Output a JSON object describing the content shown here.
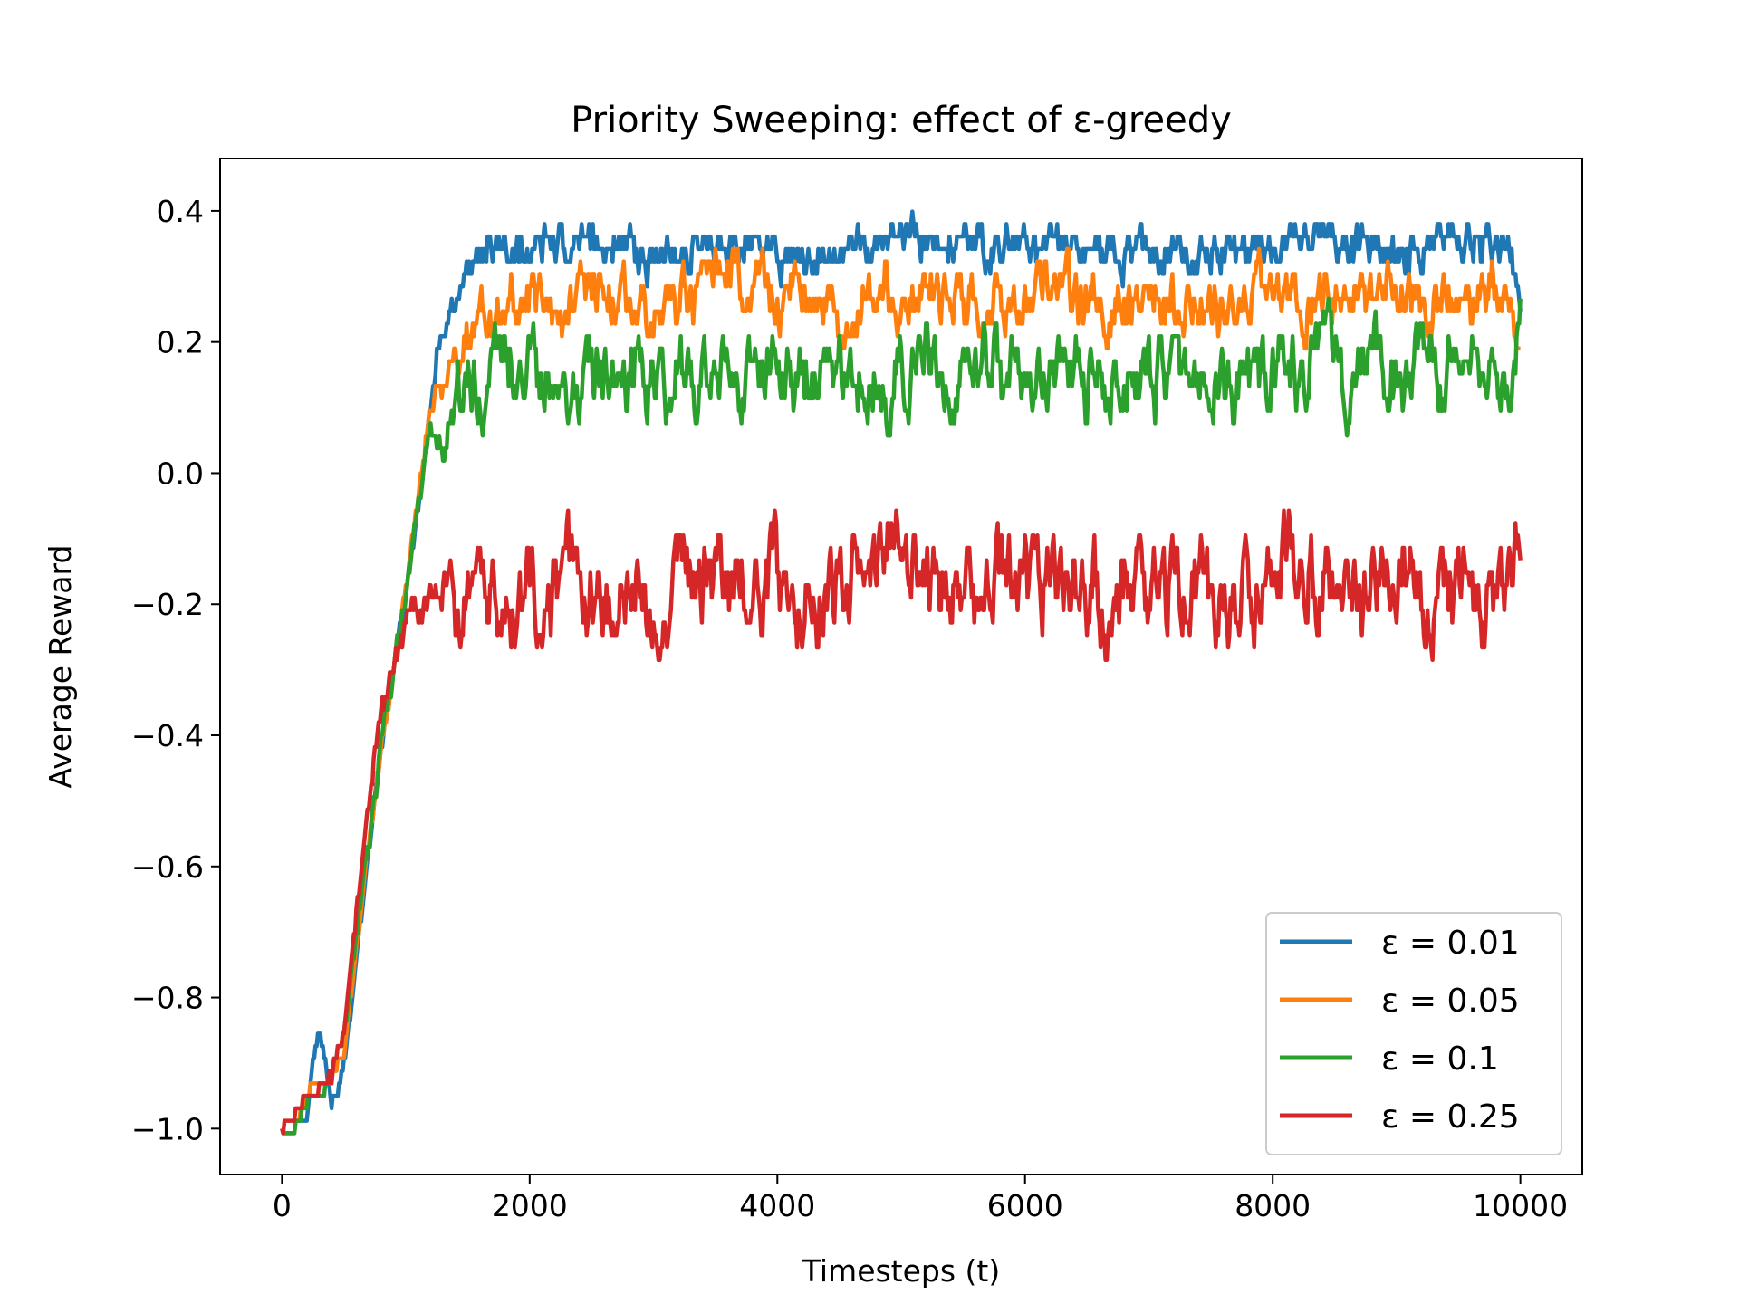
{
  "chart_data": {
    "type": "line",
    "title": "Priority Sweeping: effect of ε-greedy",
    "xlabel": "Timesteps (t)",
    "ylabel": "Average Reward",
    "xlim": [
      -500,
      10500
    ],
    "ylim": [
      -1.07,
      0.48
    ],
    "x_ticks": [
      0,
      2000,
      4000,
      6000,
      8000,
      10000
    ],
    "x_tick_labels": [
      "0",
      "2000",
      "4000",
      "6000",
      "8000",
      "10000"
    ],
    "y_ticks": [
      -1.0,
      -0.8,
      -0.6,
      -0.4,
      -0.2,
      0.0,
      0.2,
      0.4
    ],
    "y_tick_labels": [
      "−1.0",
      "−0.8",
      "−0.6",
      "−0.4",
      "−0.2",
      "0.0",
      "0.2",
      "0.4"
    ],
    "grid": false,
    "legend_position": "lower-right",
    "series": [
      {
        "name": "ε = 0.01",
        "color": "#1f77b4",
        "x": [
          0,
          100,
          200,
          250,
          300,
          350,
          400,
          450,
          500,
          600,
          700,
          800,
          900,
          1000,
          1100,
          1200,
          1250,
          1300,
          1400,
          1500,
          1700,
          2000,
          2500,
          3000,
          3500,
          4000,
          4500,
          5000,
          5500,
          6000,
          6500,
          7000,
          7500,
          8000,
          8250,
          8500,
          9000,
          9500,
          9900,
          10000
        ],
        "y": [
          -1.0,
          -1.0,
          -0.98,
          -0.9,
          -0.85,
          -0.9,
          -0.96,
          -0.95,
          -0.9,
          -0.75,
          -0.58,
          -0.42,
          -0.3,
          -0.17,
          -0.05,
          0.1,
          0.18,
          0.2,
          0.25,
          0.32,
          0.34,
          0.34,
          0.35,
          0.34,
          0.35,
          0.33,
          0.35,
          0.36,
          0.34,
          0.35,
          0.34,
          0.33,
          0.34,
          0.35,
          0.38,
          0.35,
          0.34,
          0.35,
          0.34,
          0.26
        ],
        "band": 0.03
      },
      {
        "name": "ε = 0.05",
        "color": "#ff7f0e",
        "x": [
          0,
          100,
          200,
          300,
          400,
          500,
          600,
          700,
          800,
          900,
          1000,
          1100,
          1200,
          1300,
          1400,
          1500,
          1700,
          2000,
          2500,
          3000,
          3500,
          3700,
          4000,
          4500,
          5000,
          5500,
          6000,
          6500,
          7000,
          7500,
          8000,
          8500,
          9000,
          9500,
          9900,
          10000
        ],
        "y": [
          -1.0,
          -1.0,
          -0.95,
          -0.92,
          -0.93,
          -0.88,
          -0.72,
          -0.56,
          -0.42,
          -0.3,
          -0.18,
          -0.03,
          0.1,
          0.14,
          0.18,
          0.22,
          0.24,
          0.26,
          0.27,
          0.26,
          0.27,
          0.3,
          0.27,
          0.26,
          0.27,
          0.27,
          0.26,
          0.26,
          0.27,
          0.25,
          0.27,
          0.27,
          0.26,
          0.27,
          0.27,
          0.15
        ],
        "band": 0.045
      },
      {
        "name": "ε = 0.1",
        "color": "#2ca02c",
        "x": [
          0,
          100,
          200,
          300,
          400,
          500,
          600,
          700,
          800,
          900,
          1000,
          1100,
          1200,
          1300,
          1400,
          1500,
          1700,
          2000,
          2500,
          3000,
          3500,
          4000,
          4500,
          5000,
          5500,
          6000,
          6500,
          7000,
          7500,
          8000,
          8500,
          9000,
          9500,
          9900,
          10000
        ],
        "y": [
          -1.0,
          -1.0,
          -0.96,
          -0.95,
          -0.92,
          -0.86,
          -0.7,
          -0.56,
          -0.42,
          -0.3,
          -0.2,
          -0.05,
          0.06,
          0.04,
          0.1,
          0.13,
          0.14,
          0.15,
          0.15,
          0.16,
          0.14,
          0.15,
          0.14,
          0.15,
          0.16,
          0.15,
          0.14,
          0.15,
          0.14,
          0.15,
          0.15,
          0.15,
          0.15,
          0.16,
          0.21
        ],
        "band": 0.06
      },
      {
        "name": "ε = 0.25",
        "color": "#d62728",
        "x": [
          0,
          100,
          200,
          300,
          400,
          500,
          600,
          700,
          800,
          900,
          1000,
          1100,
          1200,
          1300,
          1400,
          1500,
          2000,
          2500,
          2800,
          3000,
          3500,
          4000,
          4500,
          5000,
          5500,
          6000,
          6500,
          7000,
          7500,
          8000,
          8100,
          8500,
          9000,
          9500,
          9900,
          10000
        ],
        "y": [
          -1.0,
          -0.98,
          -0.95,
          -0.94,
          -0.92,
          -0.85,
          -0.68,
          -0.5,
          -0.38,
          -0.3,
          -0.22,
          -0.2,
          -0.18,
          -0.18,
          -0.17,
          -0.18,
          -0.18,
          -0.18,
          -0.22,
          -0.18,
          -0.16,
          -0.17,
          -0.16,
          -0.14,
          -0.18,
          -0.18,
          -0.17,
          -0.18,
          -0.19,
          -0.17,
          -0.12,
          -0.18,
          -0.17,
          -0.18,
          -0.2,
          -0.12
        ],
        "band": 0.07
      }
    ]
  }
}
